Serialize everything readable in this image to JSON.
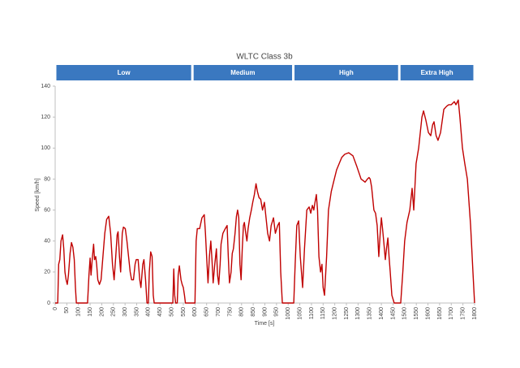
{
  "chart_data": {
    "type": "line",
    "title": "WLTC Class 3b",
    "phases": [
      {
        "label": "Low",
        "start": 0,
        "end": 589
      },
      {
        "label": "Medium",
        "start": 589,
        "end": 1022
      },
      {
        "label": "High",
        "start": 1022,
        "end": 1477
      },
      {
        "label": "Extra High",
        "start": 1477,
        "end": 1800
      }
    ],
    "phase_color": "#3a78c0",
    "xlabel": "Time [s]",
    "ylabel": "Speed [km/h]",
    "color": "#c00000",
    "xlim": [
      0,
      1800
    ],
    "ylim": [
      0,
      140
    ],
    "xticks": [
      0,
      50,
      100,
      150,
      200,
      250,
      300,
      350,
      400,
      450,
      500,
      550,
      600,
      650,
      700,
      750,
      800,
      850,
      900,
      950,
      1000,
      1050,
      1100,
      1150,
      1200,
      1250,
      1300,
      1350,
      1400,
      1450,
      1500,
      1550,
      1600,
      1650,
      1700,
      1750,
      1800
    ],
    "yticks": [
      0,
      20,
      40,
      60,
      80,
      100,
      120,
      140
    ],
    "grid": false,
    "x": [
      0,
      11,
      15,
      20,
      25,
      32,
      37,
      42,
      47,
      52,
      57,
      64,
      70,
      76,
      82,
      87,
      91,
      139,
      145,
      150,
      154,
      160,
      165,
      169,
      174,
      178,
      183,
      190,
      197,
      205,
      213,
      221,
      230,
      238,
      246,
      253,
      260,
      266,
      270,
      276,
      281,
      288,
      293,
      301,
      308,
      315,
      322,
      328,
      336,
      343,
      348,
      356,
      363,
      368,
      376,
      381,
      388,
      394,
      400,
      404,
      410,
      416,
      421,
      425,
      505,
      509,
      513,
      517,
      524,
      528,
      533,
      540,
      545,
      550,
      555,
      559,
      600,
      605,
      610,
      620,
      630,
      640,
      645,
      650,
      656,
      662,
      668,
      673,
      678,
      685,
      692,
      697,
      702,
      708,
      712,
      720,
      730,
      738,
      743,
      748,
      755,
      760,
      765,
      772,
      778,
      783,
      788,
      793,
      798,
      803,
      808,
      812,
      818,
      823,
      828,
      835,
      842,
      848,
      855,
      862,
      868,
      875,
      882,
      890,
      898,
      905,
      912,
      920,
      927,
      937,
      945,
      955,
      962,
      968,
      975,
      1024,
      1030,
      1037,
      1045,
      1052,
      1062,
      1070,
      1080,
      1090,
      1097,
      1104,
      1110,
      1114,
      1121,
      1126,
      1132,
      1139,
      1145,
      1150,
      1156,
      1165,
      1173,
      1185,
      1198,
      1208,
      1219,
      1230,
      1243,
      1260,
      1278,
      1295,
      1313,
      1322,
      1330,
      1340,
      1347,
      1352,
      1358,
      1368,
      1375,
      1382,
      1389,
      1395,
      1400,
      1405,
      1410,
      1417,
      1422,
      1428,
      1433,
      1438,
      1445,
      1455,
      1483,
      1492,
      1500,
      1510,
      1522,
      1532,
      1539,
      1549,
      1560,
      1574,
      1581,
      1591,
      1602,
      1612,
      1620,
      1626,
      1635,
      1643,
      1654,
      1668,
      1680,
      1689,
      1700,
      1713,
      1720,
      1730,
      1737,
      1748,
      1758,
      1769,
      1783,
      1793,
      1800
    ],
    "values": [
      0,
      0,
      25,
      28,
      40,
      44,
      35,
      20,
      15,
      12,
      18,
      32,
      39,
      36,
      28,
      10,
      0,
      0,
      18,
      29,
      18,
      30,
      38,
      28,
      30,
      25,
      15,
      12,
      15,
      30,
      45,
      54,
      56,
      45,
      25,
      15,
      30,
      44,
      46,
      30,
      20,
      45,
      49,
      48,
      40,
      30,
      20,
      15,
      15,
      25,
      28,
      28,
      15,
      10,
      25,
      28,
      15,
      0,
      0,
      20,
      33,
      30,
      5,
      0,
      0,
      22,
      5,
      0,
      0,
      18,
      24,
      15,
      12,
      10,
      5,
      0,
      0,
      40,
      48,
      48,
      55,
      57,
      45,
      30,
      13,
      30,
      40,
      28,
      13,
      25,
      35,
      18,
      12,
      25,
      38,
      45,
      48,
      50,
      30,
      13,
      20,
      32,
      35,
      45,
      56,
      60,
      55,
      25,
      15,
      35,
      50,
      52,
      45,
      40,
      48,
      55,
      60,
      65,
      70,
      77,
      72,
      68,
      67,
      60,
      65,
      55,
      45,
      40,
      50,
      55,
      45,
      50,
      52,
      20,
      0,
      0,
      25,
      50,
      53,
      30,
      10,
      35,
      60,
      62,
      58,
      63,
      60,
      64,
      70,
      60,
      30,
      20,
      25,
      10,
      5,
      30,
      60,
      72,
      80,
      86,
      90,
      94,
      96,
      97,
      95,
      88,
      80,
      79,
      78,
      80,
      81,
      80,
      75,
      60,
      58,
      50,
      30,
      45,
      55,
      48,
      40,
      28,
      35,
      42,
      30,
      20,
      5,
      0,
      0,
      20,
      40,
      52,
      60,
      74,
      60,
      90,
      100,
      120,
      124,
      118,
      110,
      108,
      115,
      117,
      108,
      105,
      110,
      125,
      127,
      128,
      128,
      130,
      128,
      131,
      120,
      100,
      90,
      80,
      50,
      20,
      0
    ]
  }
}
